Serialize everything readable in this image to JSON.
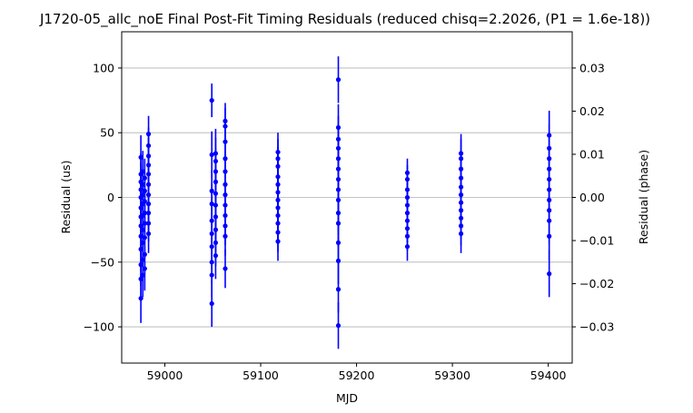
{
  "chart_data": {
    "type": "scatter",
    "title": "J1720-05_allc_noE Final Post-Fit Timing Residuals (reduced chisq=2.2026, (P1 = 1.6e-18))",
    "xlabel": "MJD",
    "ylabel": "Residual (us)",
    "y2label": "Residual (phase)",
    "xlim": [
      58955,
      59425
    ],
    "ylim": [
      -128,
      128
    ],
    "y2lim": [
      -0.0384,
      0.0384
    ],
    "xticks": [
      59000,
      59100,
      59200,
      59300,
      59400
    ],
    "xtick_labels": [
      "59000",
      "59100",
      "59200",
      "59300",
      "59400"
    ],
    "yticks": [
      -100,
      -50,
      0,
      50,
      100
    ],
    "ytick_labels": [
      "−100",
      "−50",
      "0",
      "50",
      "100"
    ],
    "y2ticks": [
      -0.03,
      -0.02,
      -0.01,
      0.0,
      0.01,
      0.02,
      0.03
    ],
    "y2tick_labels": [
      "−0.03",
      "−0.02",
      "−0.01",
      "0.00",
      "0.01",
      "0.02",
      "0.03"
    ],
    "grid": "horizontal",
    "marker_color": "#0000ff",
    "series": [
      {
        "points": [
          {
            "x": 58975,
            "y": 31,
            "err": 17
          },
          {
            "x": 58975,
            "y": 18,
            "err": 16
          },
          {
            "x": 58975,
            "y": 12,
            "err": 15
          },
          {
            "x": 58975,
            "y": 6,
            "err": 15
          },
          {
            "x": 58975,
            "y": 0,
            "err": 16
          },
          {
            "x": 58975,
            "y": -8,
            "err": 15
          },
          {
            "x": 58975,
            "y": -15,
            "err": 16
          },
          {
            "x": 58975,
            "y": -22,
            "err": 15
          },
          {
            "x": 58975,
            "y": -30,
            "err": 16
          },
          {
            "x": 58975,
            "y": -40,
            "err": 17
          },
          {
            "x": 58975,
            "y": -52,
            "err": 16
          },
          {
            "x": 58975,
            "y": -63,
            "err": 17
          },
          {
            "x": 58975,
            "y": -78,
            "err": 19
          },
          {
            "x": 58977,
            "y": 20,
            "err": 16
          },
          {
            "x": 58977,
            "y": 10,
            "err": 15
          },
          {
            "x": 58977,
            "y": 2,
            "err": 15
          },
          {
            "x": 58977,
            "y": -5,
            "err": 16
          },
          {
            "x": 58977,
            "y": -14,
            "err": 15
          },
          {
            "x": 58977,
            "y": -25,
            "err": 16
          },
          {
            "x": 58977,
            "y": -35,
            "err": 17
          },
          {
            "x": 58977,
            "y": -48,
            "err": 17
          },
          {
            "x": 58977,
            "y": -60,
            "err": 17
          },
          {
            "x": 58979,
            "y": 15,
            "err": 15
          },
          {
            "x": 58979,
            "y": 5,
            "err": 15
          },
          {
            "x": 58979,
            "y": -3,
            "err": 16
          },
          {
            "x": 58979,
            "y": -12,
            "err": 15
          },
          {
            "x": 58979,
            "y": -20,
            "err": 16
          },
          {
            "x": 58979,
            "y": -31,
            "err": 16
          },
          {
            "x": 58979,
            "y": -44,
            "err": 17
          },
          {
            "x": 58979,
            "y": -55,
            "err": 17
          },
          {
            "x": 58983,
            "y": 49,
            "err": 14
          },
          {
            "x": 58983,
            "y": 40,
            "err": 14
          },
          {
            "x": 58983,
            "y": 32,
            "err": 14
          },
          {
            "x": 58983,
            "y": 25,
            "err": 14
          },
          {
            "x": 58983,
            "y": 18,
            "err": 13
          },
          {
            "x": 58983,
            "y": 10,
            "err": 14
          },
          {
            "x": 58983,
            "y": 2,
            "err": 13
          },
          {
            "x": 58983,
            "y": -5,
            "err": 14
          },
          {
            "x": 58983,
            "y": -12,
            "err": 14
          },
          {
            "x": 58983,
            "y": -20,
            "err": 14
          },
          {
            "x": 58983,
            "y": -28,
            "err": 15
          },
          {
            "x": 59049,
            "y": 75,
            "err": 13
          },
          {
            "x": 59049,
            "y": 33,
            "err": 18
          },
          {
            "x": 59049,
            "y": 5,
            "err": 16
          },
          {
            "x": 59049,
            "y": -5,
            "err": 16
          },
          {
            "x": 59049,
            "y": -18,
            "err": 17
          },
          {
            "x": 59049,
            "y": -28,
            "err": 16
          },
          {
            "x": 59049,
            "y": -38,
            "err": 17
          },
          {
            "x": 59049,
            "y": -50,
            "err": 17
          },
          {
            "x": 59049,
            "y": -60,
            "err": 17
          },
          {
            "x": 59049,
            "y": -82,
            "err": 18
          },
          {
            "x": 59053,
            "y": 34,
            "err": 19
          },
          {
            "x": 59053,
            "y": 28,
            "err": 18
          },
          {
            "x": 59053,
            "y": 20,
            "err": 18
          },
          {
            "x": 59053,
            "y": 12,
            "err": 18
          },
          {
            "x": 59053,
            "y": 3,
            "err": 18
          },
          {
            "x": 59053,
            "y": -6,
            "err": 17
          },
          {
            "x": 59053,
            "y": -15,
            "err": 18
          },
          {
            "x": 59053,
            "y": -25,
            "err": 17
          },
          {
            "x": 59053,
            "y": -35,
            "err": 18
          },
          {
            "x": 59053,
            "y": -45,
            "err": 18
          },
          {
            "x": 59063,
            "y": 59,
            "err": 14
          },
          {
            "x": 59063,
            "y": 55,
            "err": 14
          },
          {
            "x": 59063,
            "y": 43,
            "err": 15
          },
          {
            "x": 59063,
            "y": 30,
            "err": 15
          },
          {
            "x": 59063,
            "y": 20,
            "err": 15
          },
          {
            "x": 59063,
            "y": 10,
            "err": 15
          },
          {
            "x": 59063,
            "y": 2,
            "err": 15
          },
          {
            "x": 59063,
            "y": -6,
            "err": 15
          },
          {
            "x": 59063,
            "y": -14,
            "err": 15
          },
          {
            "x": 59063,
            "y": -22,
            "err": 15
          },
          {
            "x": 59063,
            "y": -30,
            "err": 15
          },
          {
            "x": 59063,
            "y": -55,
            "err": 15
          },
          {
            "x": 59118,
            "y": 35,
            "err": 15
          },
          {
            "x": 59118,
            "y": 30,
            "err": 15
          },
          {
            "x": 59118,
            "y": 24,
            "err": 15
          },
          {
            "x": 59118,
            "y": 16,
            "err": 15
          },
          {
            "x": 59118,
            "y": 10,
            "err": 15
          },
          {
            "x": 59118,
            "y": 4,
            "err": 15
          },
          {
            "x": 59118,
            "y": -2,
            "err": 15
          },
          {
            "x": 59118,
            "y": -8,
            "err": 15
          },
          {
            "x": 59118,
            "y": -14,
            "err": 15
          },
          {
            "x": 59118,
            "y": -20,
            "err": 15
          },
          {
            "x": 59118,
            "y": -27,
            "err": 15
          },
          {
            "x": 59118,
            "y": -34,
            "err": 15
          },
          {
            "x": 59181,
            "y": 91,
            "err": 18
          },
          {
            "x": 59181,
            "y": 54,
            "err": 18
          },
          {
            "x": 59181,
            "y": 45,
            "err": 18
          },
          {
            "x": 59181,
            "y": 38,
            "err": 17
          },
          {
            "x": 59181,
            "y": 30,
            "err": 17
          },
          {
            "x": 59181,
            "y": 22,
            "err": 17
          },
          {
            "x": 59181,
            "y": 14,
            "err": 18
          },
          {
            "x": 59181,
            "y": 6,
            "err": 17
          },
          {
            "x": 59181,
            "y": -2,
            "err": 17
          },
          {
            "x": 59181,
            "y": -12,
            "err": 17
          },
          {
            "x": 59181,
            "y": -20,
            "err": 18
          },
          {
            "x": 59181,
            "y": -35,
            "err": 18
          },
          {
            "x": 59181,
            "y": -49,
            "err": 18
          },
          {
            "x": 59181,
            "y": -71,
            "err": 18
          },
          {
            "x": 59181,
            "y": -99,
            "err": 18
          },
          {
            "x": 59253,
            "y": 19,
            "err": 11
          },
          {
            "x": 59253,
            "y": 14,
            "err": 11
          },
          {
            "x": 59253,
            "y": 6,
            "err": 11
          },
          {
            "x": 59253,
            "y": 0,
            "err": 11
          },
          {
            "x": 59253,
            "y": -6,
            "err": 11
          },
          {
            "x": 59253,
            "y": -12,
            "err": 11
          },
          {
            "x": 59253,
            "y": -18,
            "err": 11
          },
          {
            "x": 59253,
            "y": -24,
            "err": 11
          },
          {
            "x": 59253,
            "y": -30,
            "err": 11
          },
          {
            "x": 59253,
            "y": -38,
            "err": 11
          },
          {
            "x": 59309,
            "y": 34,
            "err": 15
          },
          {
            "x": 59309,
            "y": 30,
            "err": 15
          },
          {
            "x": 59309,
            "y": 22,
            "err": 15
          },
          {
            "x": 59309,
            "y": 15,
            "err": 15
          },
          {
            "x": 59309,
            "y": 8,
            "err": 15
          },
          {
            "x": 59309,
            "y": 2,
            "err": 15
          },
          {
            "x": 59309,
            "y": -4,
            "err": 15
          },
          {
            "x": 59309,
            "y": -10,
            "err": 15
          },
          {
            "x": 59309,
            "y": -16,
            "err": 15
          },
          {
            "x": 59309,
            "y": -22,
            "err": 15
          },
          {
            "x": 59309,
            "y": -28,
            "err": 15
          },
          {
            "x": 59401,
            "y": 48,
            "err": 19
          },
          {
            "x": 59401,
            "y": 38,
            "err": 19
          },
          {
            "x": 59401,
            "y": 30,
            "err": 18
          },
          {
            "x": 59401,
            "y": 22,
            "err": 18
          },
          {
            "x": 59401,
            "y": 14,
            "err": 18
          },
          {
            "x": 59401,
            "y": 6,
            "err": 18
          },
          {
            "x": 59401,
            "y": -2,
            "err": 18
          },
          {
            "x": 59401,
            "y": -10,
            "err": 18
          },
          {
            "x": 59401,
            "y": -18,
            "err": 18
          },
          {
            "x": 59401,
            "y": -30,
            "err": 18
          },
          {
            "x": 59401,
            "y": -59,
            "err": 18
          }
        ]
      }
    ]
  }
}
